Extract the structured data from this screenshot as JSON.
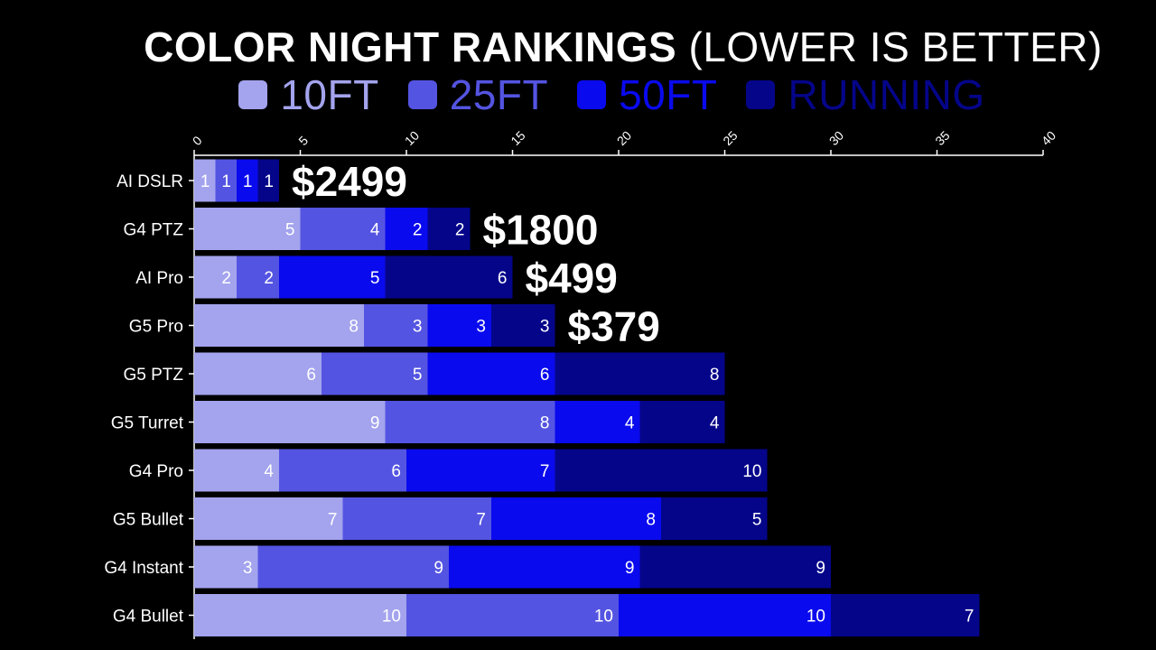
{
  "title": {
    "bold": "COLOR NIGHT RANKINGS",
    "light": "(LOWER IS BETTER)"
  },
  "chart_data": {
    "type": "bar",
    "orientation": "horizontal",
    "stacked": true,
    "categories": [
      "AI DSLR",
      "G4 PTZ",
      "AI Pro",
      "G5 Pro",
      "G5 PTZ",
      "G5 Turret",
      "G4 Pro",
      "G5 Bullet",
      "G4 Instant",
      "G4 Bullet"
    ],
    "series": [
      {
        "name": "10FT",
        "color": "#a3a3ee",
        "values": [
          1,
          5,
          2,
          8,
          6,
          9,
          4,
          7,
          3,
          10
        ]
      },
      {
        "name": "25FT",
        "color": "#5454e2",
        "values": [
          1,
          4,
          2,
          3,
          5,
          8,
          6,
          7,
          9,
          10
        ]
      },
      {
        "name": "50FT",
        "color": "#0a0aee",
        "values": [
          1,
          2,
          5,
          3,
          6,
          4,
          7,
          8,
          9,
          10
        ]
      },
      {
        "name": "RUNNING",
        "color": "#05058a",
        "values": [
          1,
          2,
          6,
          3,
          8,
          4,
          10,
          5,
          9,
          7
        ]
      }
    ],
    "annotations": [
      {
        "category": "AI DSLR",
        "text": "$2499"
      },
      {
        "category": "G4 PTZ",
        "text": "$1800"
      },
      {
        "category": "AI Pro",
        "text": "$499"
      },
      {
        "category": "G5 Pro",
        "text": "$379"
      }
    ],
    "xlim": [
      0,
      40
    ],
    "xticks": [
      0,
      5,
      10,
      15,
      20,
      25,
      30,
      35,
      40
    ],
    "grid": false,
    "legend_position": "top"
  }
}
